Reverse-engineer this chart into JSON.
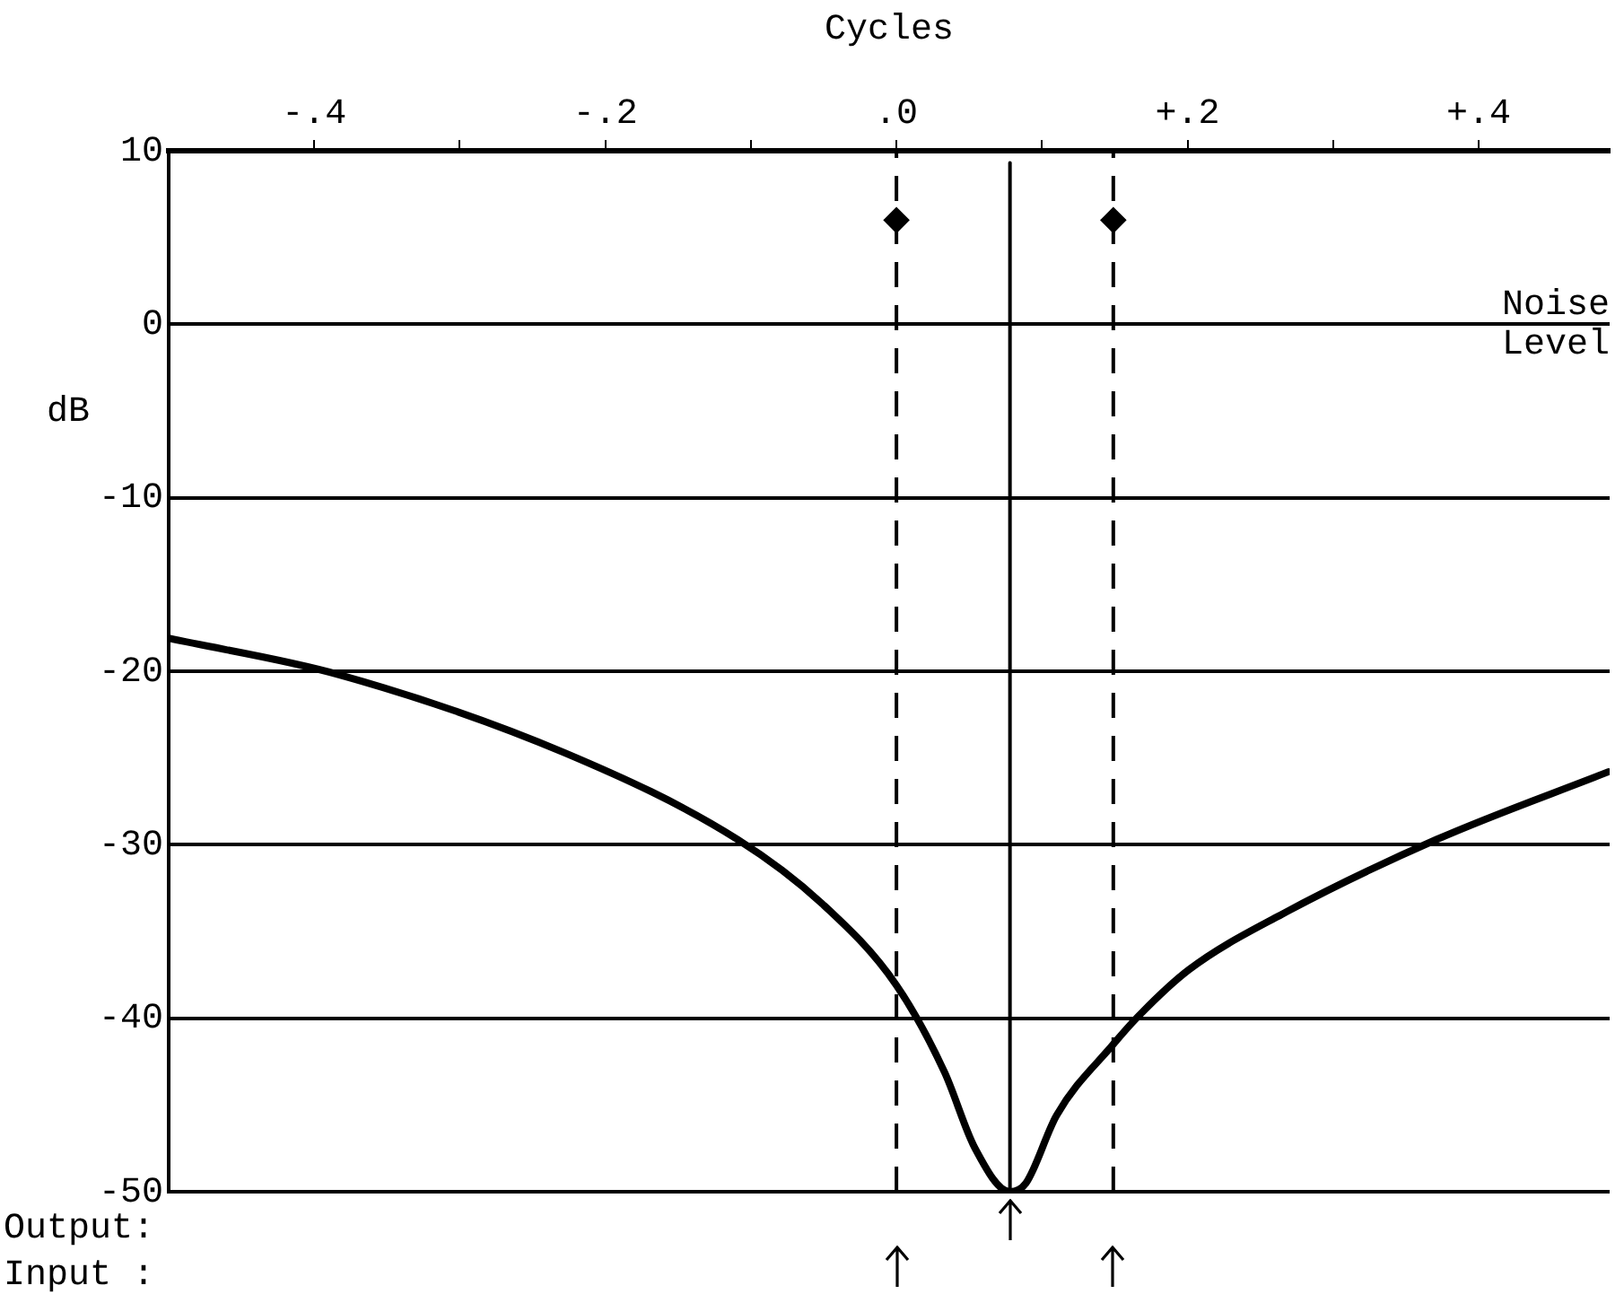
{
  "chart_data": {
    "type": "line",
    "xlabel": "Cycles",
    "ylabel": "dB",
    "xlim": [
      -0.5,
      0.49
    ],
    "ylim": [
      -50,
      10
    ],
    "xticks": [
      {
        "value": -0.4,
        "label": "-.4"
      },
      {
        "value": -0.3,
        "label": null
      },
      {
        "value": -0.2,
        "label": "-.2"
      },
      {
        "value": -0.1,
        "label": null
      },
      {
        "value": 0,
        "label": ".0"
      },
      {
        "value": 0.1,
        "label": null
      },
      {
        "value": 0.2,
        "label": "+.2"
      },
      {
        "value": 0.3,
        "label": null
      },
      {
        "value": 0.4,
        "label": "+.4"
      }
    ],
    "yticks": [
      10,
      0,
      -10,
      -20,
      -30,
      -40,
      -50
    ],
    "grid": "y",
    "marker": "none",
    "series": [
      {
        "color": "#000000",
        "x": [
          -0.5,
          -0.383,
          -0.228,
          -0.109,
          -0.051,
          0,
          0.033,
          0.054,
          0.078,
          0.089,
          0.11,
          0.149,
          0.166,
          0.201,
          0.265,
          0.371,
          0.489
        ],
        "values": [
          -18.1,
          -20.2,
          -24.7,
          -29.7,
          -33.4,
          -38.1,
          -43.1,
          -47.5,
          -50,
          -49.5,
          -45.6,
          -41.5,
          -39.9,
          -37.2,
          -34,
          -29.7,
          -25.8
        ]
      },
      {
        "type": "line",
        "color": "#000000",
        "x": [
          0.078,
          0.078
        ],
        "values": [
          -50,
          9.3
        ]
      },
      {
        "type": "scatter",
        "color": "#000000",
        "marker": "diamond",
        "x": [
          0,
          0.149
        ],
        "values": [
          6,
          6
        ]
      }
    ],
    "ref_lines": [
      {
        "axis": "x",
        "value": 0,
        "color": "#000000",
        "line_style": "dashed"
      },
      {
        "axis": "x",
        "value": 0.149,
        "color": "#000000",
        "line_style": "dashed"
      }
    ],
    "annotations": [
      "Noise Level",
      "Output:",
      "Input :"
    ]
  }
}
